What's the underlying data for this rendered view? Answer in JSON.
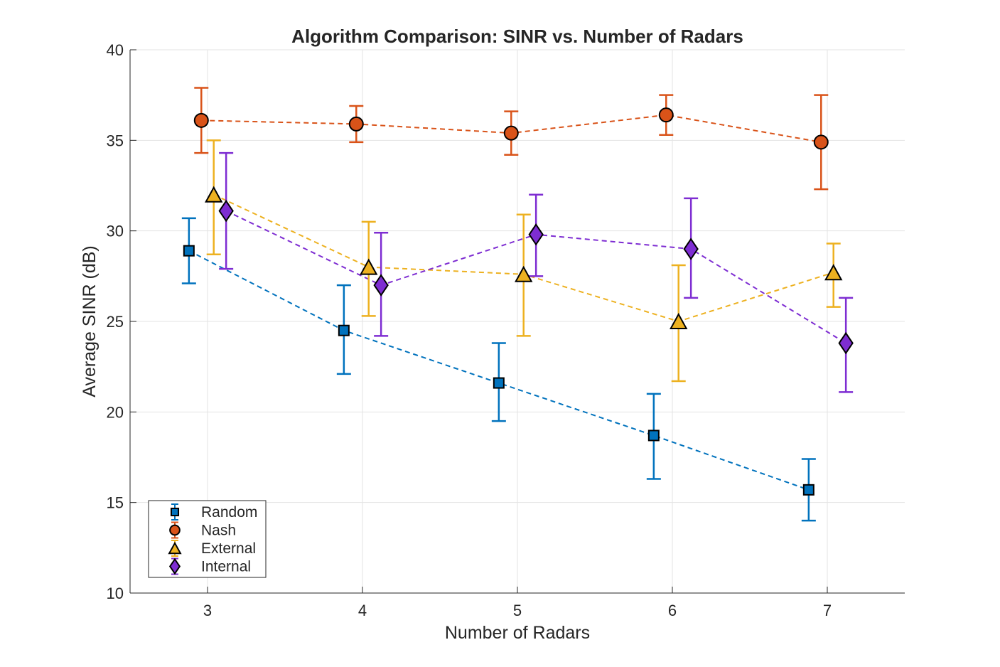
{
  "chart_data": {
    "type": "errorbar-line",
    "title": "Algorithm Comparison: SINR vs. Number of Radars",
    "xlabel": "Number of Radars",
    "ylabel": "Average SINR (dB)",
    "xlim": [
      2.5,
      7.5
    ],
    "ylim": [
      10,
      40
    ],
    "xticks": [
      "3",
      "4",
      "5",
      "6",
      "7"
    ],
    "xtick_values": [
      3,
      4,
      5,
      6,
      7
    ],
    "yticks": [
      "10",
      "15",
      "20",
      "25",
      "30",
      "35",
      "40"
    ],
    "ytick_values": [
      10,
      15,
      20,
      25,
      30,
      35,
      40
    ],
    "grid": true,
    "legend_location": "bottom-left",
    "categories": [
      3,
      4,
      5,
      6,
      7
    ],
    "series": [
      {
        "name": "Random",
        "marker": "square",
        "color": "#0072BD",
        "x_offset": -0.12,
        "values": [
          28.9,
          24.5,
          21.6,
          18.7,
          15.7
        ],
        "lower": [
          27.1,
          22.1,
          19.5,
          16.3,
          14.0
        ],
        "upper": [
          30.7,
          27.0,
          23.8,
          21.0,
          17.4
        ]
      },
      {
        "name": "Nash",
        "marker": "circle",
        "color": "#D95319",
        "x_offset": -0.04,
        "values": [
          36.1,
          35.9,
          35.4,
          36.4,
          34.9
        ],
        "lower": [
          34.3,
          34.9,
          34.2,
          35.3,
          32.3
        ],
        "upper": [
          37.9,
          36.9,
          36.6,
          37.5,
          37.5
        ]
      },
      {
        "name": "External",
        "marker": "triangle",
        "color": "#EDB120",
        "x_offset": 0.04,
        "values": [
          32.0,
          28.0,
          27.6,
          25.0,
          27.7
        ],
        "lower": [
          28.7,
          25.3,
          24.2,
          21.7,
          25.8
        ],
        "upper": [
          35.0,
          30.5,
          30.9,
          28.1,
          29.3
        ]
      },
      {
        "name": "Internal",
        "marker": "diamond",
        "color": "#7E2DD2",
        "x_offset": 0.12,
        "values": [
          31.1,
          27.0,
          29.8,
          29.0,
          23.8
        ],
        "lower": [
          27.9,
          24.2,
          27.5,
          26.3,
          21.1
        ],
        "upper": [
          34.3,
          29.9,
          32.0,
          31.8,
          26.3
        ]
      }
    ]
  }
}
